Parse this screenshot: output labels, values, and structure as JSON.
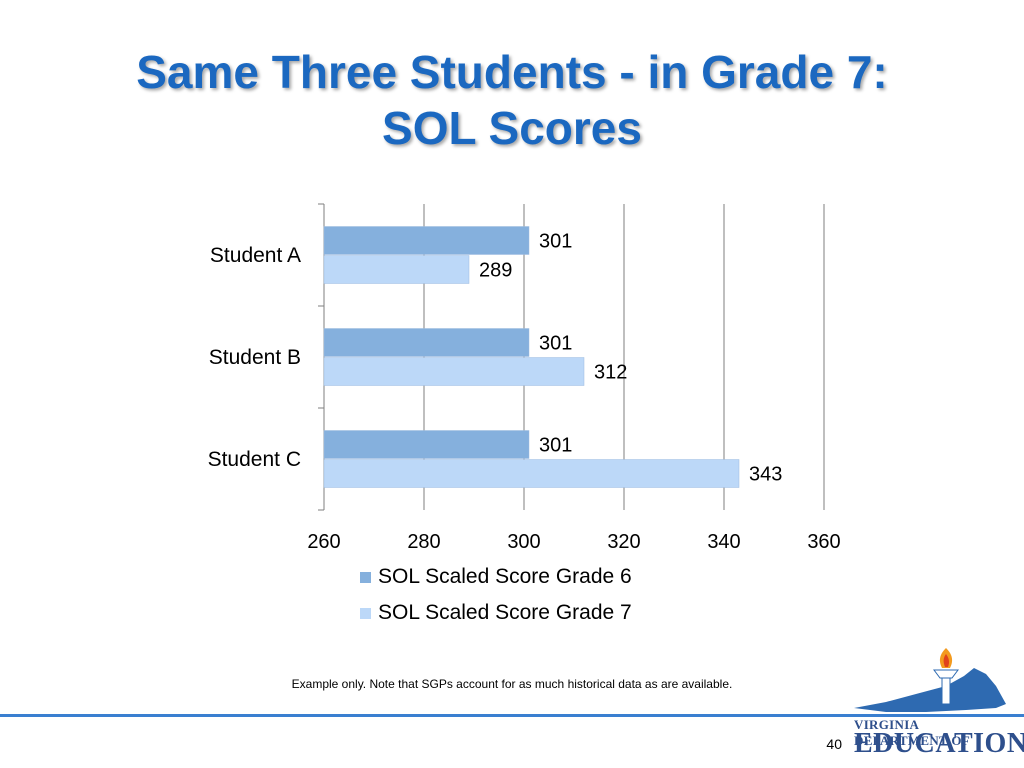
{
  "slide": {
    "title_line1": "Same Three Students - in Grade 7:",
    "title_line2": "SOL Scores",
    "footnote": "Example only.  Note that SGPs account for as much historical data as are available.",
    "page_number": "40",
    "logo_text_top": "VIRGINIA DEPARTMENT OF",
    "logo_text_bottom": "EDUCATION"
  },
  "colors": {
    "title": "#1b68c0",
    "grade6_bar": "#85b0dd",
    "grade7_bar": "#bcd8f8",
    "gridline": "#7f7f7f",
    "rule": "#3a7fd0",
    "logo_blue": "#2e6ab1"
  },
  "chart_data": {
    "type": "bar",
    "orientation": "horizontal",
    "categories": [
      "Student A",
      "Student B",
      "Student C"
    ],
    "series": [
      {
        "name": "SOL Scaled Score Grade 6",
        "values": [
          301,
          301,
          301
        ]
      },
      {
        "name": "SOL Scaled Score Grade 7",
        "values": [
          289,
          312,
          343
        ]
      }
    ],
    "xlim": [
      260,
      360
    ],
    "xticks": [
      260,
      280,
      300,
      320,
      340,
      360
    ],
    "grid": true,
    "legend_position": "bottom",
    "data_labels": true
  }
}
